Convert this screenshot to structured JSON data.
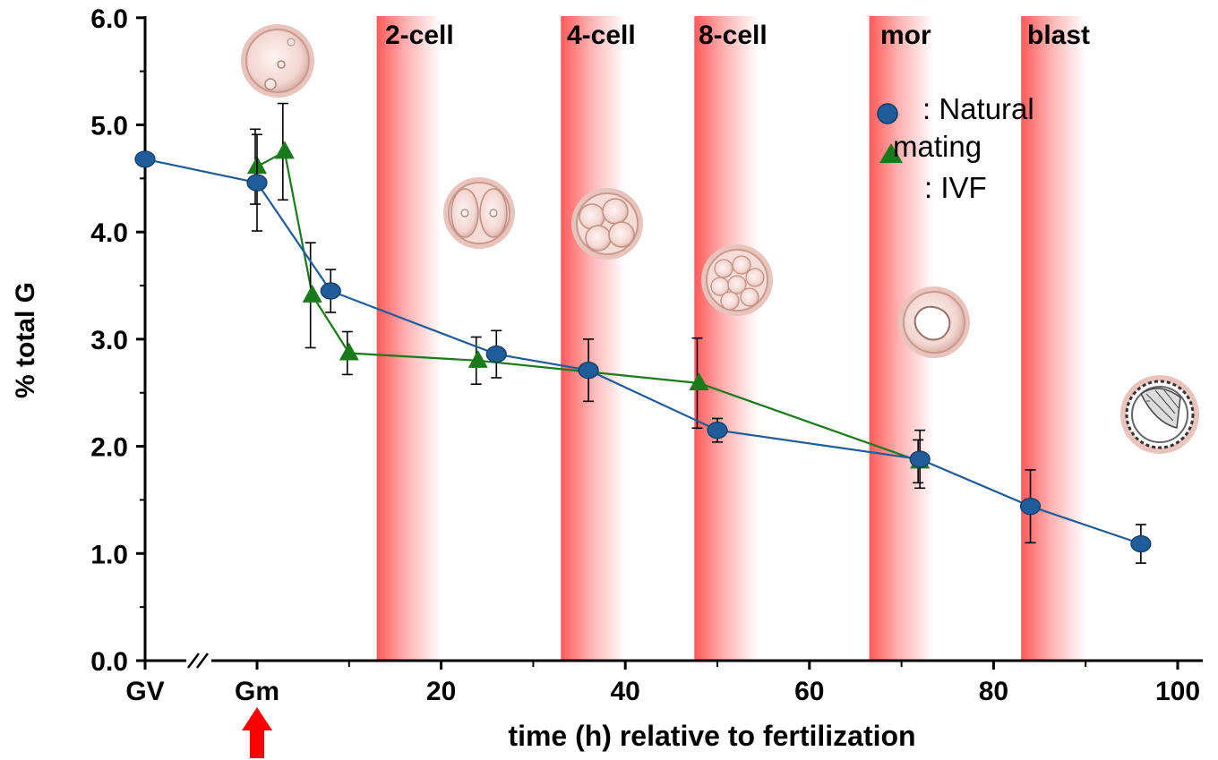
{
  "chart_data": {
    "type": "line",
    "ylabel": "% total G",
    "xlabel": "time (h) relative to fertilization",
    "ylim": [
      0,
      6
    ],
    "xlim": [
      -6,
      100
    ],
    "y_ticks": [
      "0.0",
      "1.0",
      "2.0",
      "3.0",
      "4.0",
      "5.0",
      "6.0"
    ],
    "x_ticks": [
      {
        "label": "GV",
        "x": -6
      },
      {
        "label": "Gm",
        "x": 0
      },
      {
        "label": "20",
        "x": 20
      },
      {
        "label": "40",
        "x": 40
      },
      {
        "label": "60",
        "x": 60
      },
      {
        "label": "80",
        "x": 80
      },
      {
        "label": "100",
        "x": 100
      }
    ],
    "axis_break": "between GV and Gm",
    "stages": [
      {
        "label": "2-cell",
        "start": 13,
        "end": 20
      },
      {
        "label": "4-cell",
        "start": 33,
        "end": 40
      },
      {
        "label": "8-cell",
        "start": 47.5,
        "end": 54.5
      },
      {
        "label": "mor",
        "start": 66.5,
        "end": 73.5
      },
      {
        "label": "blast",
        "start": 83,
        "end": 90
      }
    ],
    "series": [
      {
        "name": "Natural mating",
        "marker": "circle",
        "color": "#1f5c99",
        "points": [
          {
            "x": -6,
            "y": 4.68,
            "err": 0
          },
          {
            "x": 0,
            "y": 4.46,
            "err": 0.45
          },
          {
            "x": 8,
            "y": 3.45,
            "err": 0.2
          },
          {
            "x": 26,
            "y": 2.86,
            "err": 0.22
          },
          {
            "x": 36,
            "y": 2.71,
            "err": 0.29
          },
          {
            "x": 50,
            "y": 2.15,
            "err": 0.11
          },
          {
            "x": 72,
            "y": 1.88,
            "err": 0.27
          },
          {
            "x": 84,
            "y": 1.44,
            "err": 0.34
          },
          {
            "x": 96,
            "y": 1.09,
            "err": 0.18
          }
        ]
      },
      {
        "name": "IVF",
        "marker": "triangle",
        "color": "#1a7a1a",
        "points": [
          {
            "x": 0,
            "y": 4.61,
            "err": 0.35
          },
          {
            "x": 3,
            "y": 4.75,
            "err": 0.45
          },
          {
            "x": 6,
            "y": 3.41,
            "err": 0.49
          },
          {
            "x": 10,
            "y": 2.87,
            "err": 0.2
          },
          {
            "x": 24,
            "y": 2.8,
            "err": 0.22
          },
          {
            "x": 48,
            "y": 2.59,
            "err": 0.42
          },
          {
            "x": 72,
            "y": 1.86,
            "err": 0.2
          }
        ]
      }
    ],
    "legend": {
      "natural_line1": ": Natural",
      "natural_line2": "mating",
      "ivf": ": IVF"
    },
    "annotations": [
      "Gm arrow (red)"
    ]
  }
}
